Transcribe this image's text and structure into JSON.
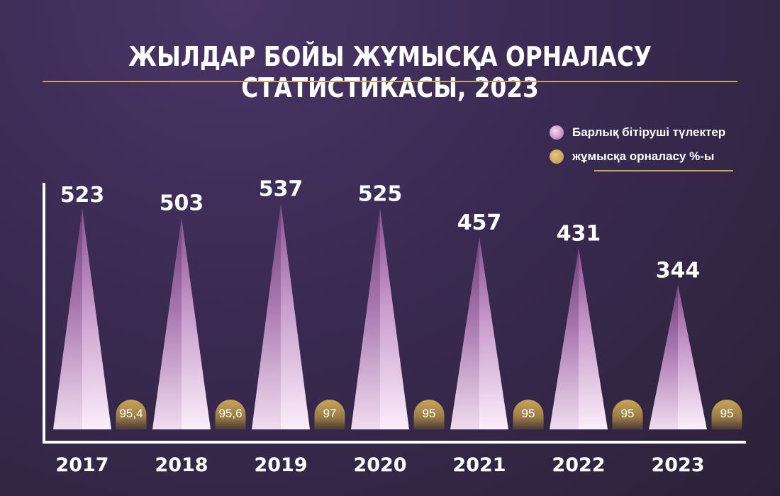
{
  "title": "ЖЫЛДАР БОЙЫ ЖҰМЫСҚА ОРНАЛАСУ СТАТИСТИКАСЫ, 2023",
  "colors": {
    "graduates": "#d9a2d6",
    "employment": "#c9a55a",
    "accent_line": "#c9a55a",
    "background": "#3a2a52"
  },
  "chart_data": {
    "type": "bar",
    "title": "ЖЫЛДАР БОЙЫ ЖҰМЫСҚА ОРНАЛАСУ СТАТИСТИКАСЫ, 2023",
    "categories": [
      "2017",
      "2018",
      "2019",
      "2020",
      "2021",
      "2022",
      "2023"
    ],
    "series": [
      {
        "name": "Барлық бітіруші түлектер",
        "values": [
          523,
          503,
          537,
          525,
          457,
          431,
          344
        ],
        "labels": [
          "523",
          "503",
          "537",
          "525",
          "457",
          "431",
          "344"
        ]
      },
      {
        "name": "жұмысқа орналасу %-ы",
        "values": [
          95.4,
          95.6,
          97,
          95,
          95,
          95,
          95
        ],
        "labels": [
          "95,4",
          "95,6",
          "97",
          "95",
          "95",
          "95",
          "95"
        ]
      }
    ],
    "legend": "top-right",
    "grid": false
  }
}
